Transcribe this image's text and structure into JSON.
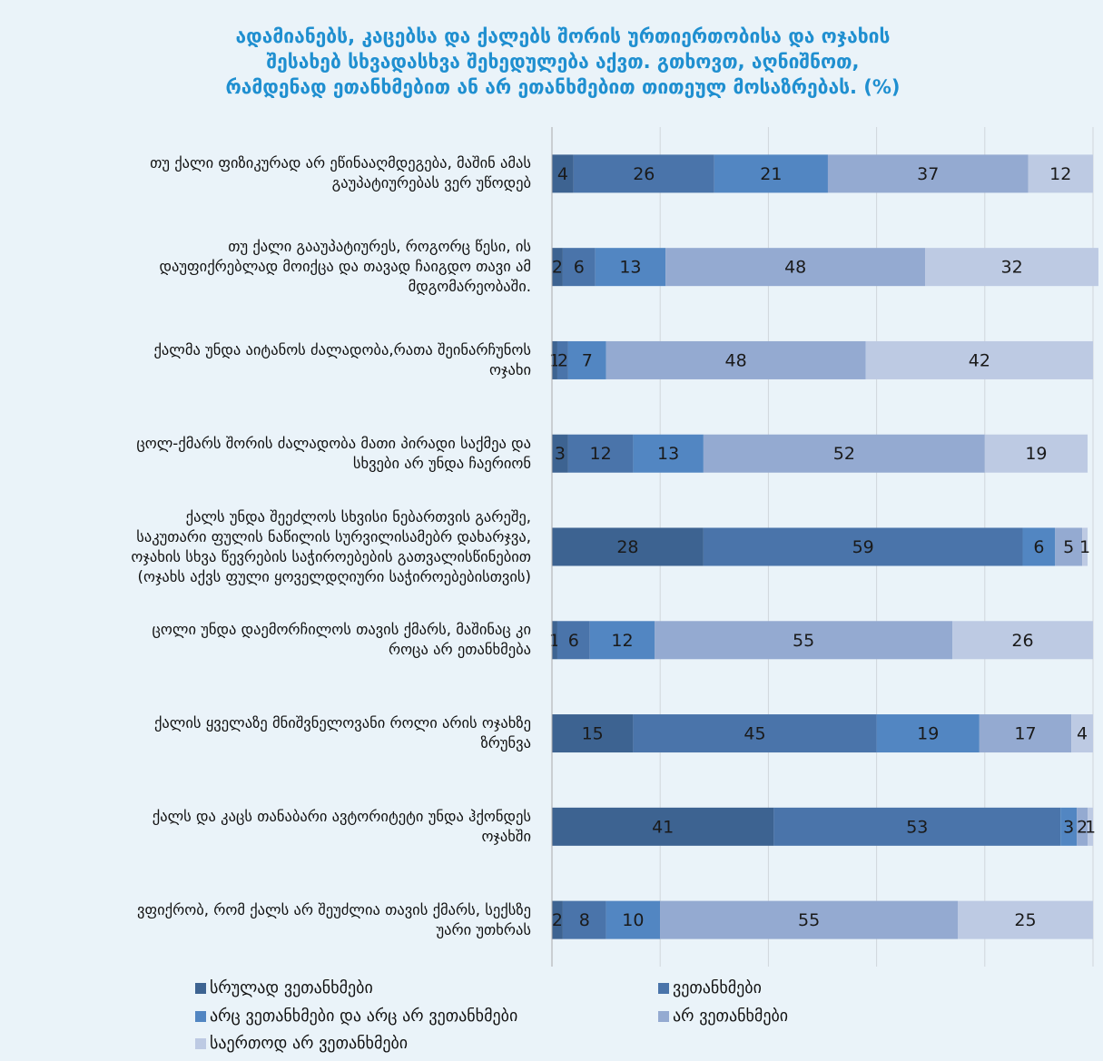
{
  "chart_data": {
    "type": "stacked_barh",
    "title": "ადამიანებს, კაცებსა და ქალებს შორის ურთიერთობისა და ოჯახის\nშესახებ სხვადასხვა  შეხედულება აქვთ. გთხოვთ, აღნიშნოთ,\nრამდენად ეთანხმებით ან არ ეთანხმებით თითეულ მოსაზრებას. (%)",
    "categories": [
      "თუ ქალი ფიზიკურად არ ეწინააღმდეგება, მაშინ ამას\nგაუპატიურებას ვერ უწოდებ",
      "თუ ქალი გააუპატიურეს, როგორც წესი, ის\nდაუფიქრებლად მოიქცა და თავად ჩაიგდო თავი ამ\nმდგომარეობაში.",
      "ქალმა უნდა აიტანოს ძალადობა,რათა შეინარჩუნოს\nოჯახი",
      "ცოლ-ქმარს შორის ძალადობა მათი პირადი საქმეა და\nსხვები არ უნდა ჩაერიონ",
      "ქალს უნდა შეეძლოს სხვისი ნებართვის გარეშე,\nსაკუთარი ფულის ნაწილის  სურვილისამებრ დახარჯვა,\nოჯახის სხვა წევრების საჭიროებების გათვალისწინებით\n(ოჯახს აქვს ფული ყოველდღიური საჭიროებებისთვის)",
      "ცოლი უნდა დაემორჩილოს თავის ქმარს, მაშინაც კი\nროცა არ ეთანხმება",
      "ქალის ყველაზე მნიშვნელოვანი როლი არის ოჯახზე\nზრუნვა",
      "ქალს და კაცს თანაბარი ავტორიტეტი უნდა ჰქონდეს\nოჯახში",
      "ვფიქრობ, რომ ქალს არ შეუძლია თავის ქმარს, სექსზე\nუარი უთხრას"
    ],
    "series": [
      {
        "name": "სრულად ვეთანხმები",
        "color": "#3d6391",
        "values": [
          4,
          2,
          1,
          3,
          28,
          1,
          15,
          41,
          2
        ]
      },
      {
        "name": "ვეთანხმები",
        "color": "#4a74aa",
        "values": [
          26,
          6,
          2,
          12,
          59,
          6,
          45,
          53,
          8
        ]
      },
      {
        "name": "არც ვეთანხმები და არც არ ვეთანხმები",
        "color": "#5286c2",
        "values": [
          21,
          13,
          7,
          13,
          6,
          12,
          19,
          3,
          10
        ]
      },
      {
        "name": "არ ვეთანხმები",
        "color": "#94aad1",
        "values": [
          37,
          48,
          48,
          52,
          5,
          55,
          17,
          2,
          55
        ]
      },
      {
        "name": "საერთოდ არ ვეთანხმები",
        "color": "#bdcae3",
        "values": [
          12,
          32,
          42,
          19,
          1,
          26,
          4,
          1,
          25
        ]
      }
    ],
    "xlim": [
      0,
      100
    ],
    "xticks": [
      0,
      20,
      40,
      60,
      80,
      100
    ],
    "grid": true
  }
}
